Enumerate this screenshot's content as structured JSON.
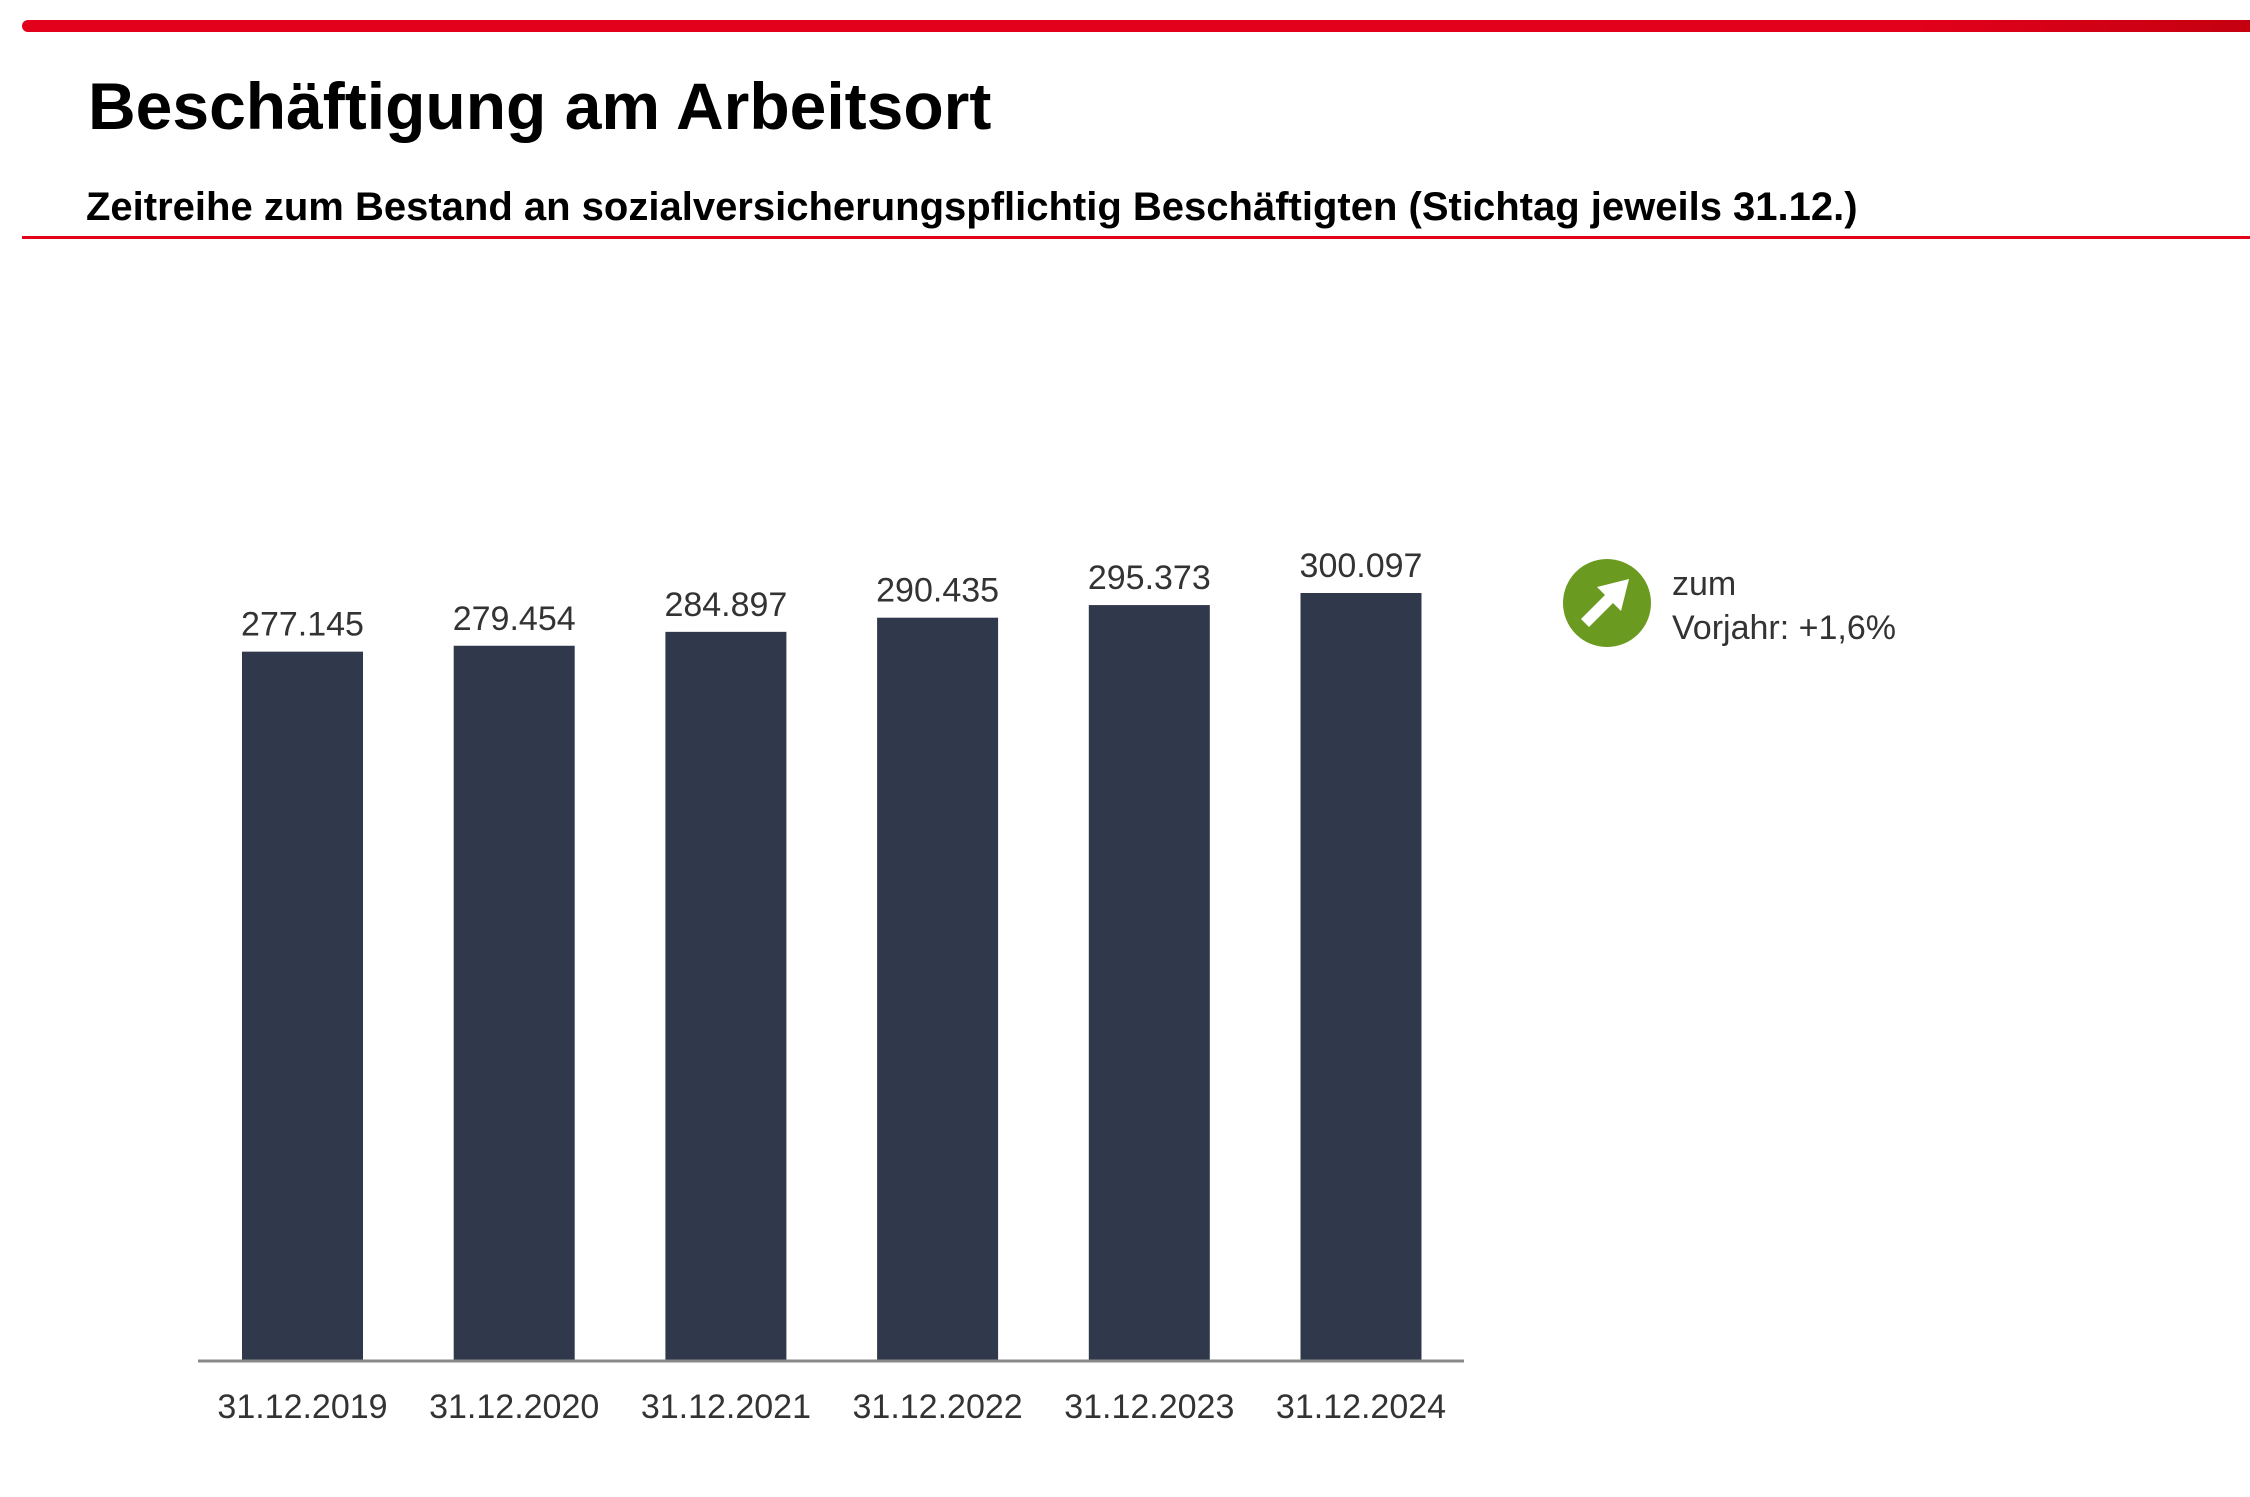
{
  "header": {
    "title": "Beschäftigung am Arbeitsort",
    "subtitle": "Zeitreihe zum Bestand an sozialversicherungspflichtig Beschäftigten (Stichtag jeweils 31.12.)"
  },
  "trend": {
    "icon": "arrow-up-right-icon",
    "line1": "zum",
    "line2": "Vorjahr:  +1,6%",
    "color": "#6a9a1f"
  },
  "colors": {
    "accent": "#e2001a",
    "bar": "#30384b"
  },
  "chart_data": {
    "type": "bar",
    "title": "Zeitreihe zum Bestand an sozialversicherungspflichtig Beschäftigten (Stichtag jeweils 31.12.)",
    "categories": [
      "31.12.2019",
      "31.12.2020",
      "31.12.2021",
      "31.12.2022",
      "31.12.2023",
      "31.12.2024"
    ],
    "values": [
      277145,
      279454,
      284897,
      290435,
      295373,
      300097
    ],
    "value_labels": [
      "277.145",
      "279.454",
      "284.897",
      "290.435",
      "295.373",
      "300.097"
    ],
    "xlabel": "",
    "ylabel": "",
    "ylim": [
      0,
      300097
    ],
    "grid": false
  }
}
